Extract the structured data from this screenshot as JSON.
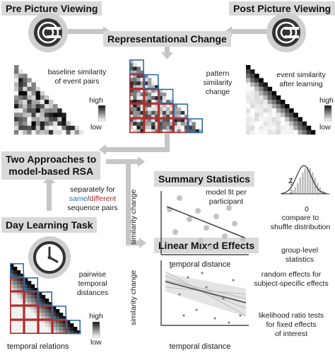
{
  "pre": {
    "title": "Pre Picture Viewing",
    "caption": "baseline similarity\nof event pairs",
    "high": "high",
    "low": "low"
  },
  "post": {
    "title": "Post Picture Viewing",
    "caption": "event similarity\nafter learning",
    "high": "high",
    "low": "low"
  },
  "center": {
    "title": "Representational Change",
    "caption": "pattern\nsimilarity\nchange"
  },
  "approaches": {
    "title_line1": "Two Approaches to",
    "title_line2": "model-based RSA",
    "note_prefix": "separately for",
    "same": "same",
    "slash": "/",
    "different": "different",
    "note_suffix": "sequence pairs"
  },
  "day": {
    "title": "Day Learning Task",
    "caption": "pairwise\ntemporal\ndistances",
    "xlabel": "temporal relations",
    "high": "high",
    "low": "low"
  },
  "summary": {
    "title": "Summary Statistics",
    "fit": "model fit per\nparticipant",
    "ylabel": "similarity change",
    "xlabel": "temporal distance",
    "z": "Z",
    "zero": "0",
    "compare": "compare to\nshuffle distribution",
    "group": "group-level\nstatistics"
  },
  "lme": {
    "title": "Linear Mixed Effects",
    "ylabel": "similarity change",
    "xlabel": "temporal distance",
    "random": "random effects for\nsubject-specific effects",
    "lrt": "likelihood ratio tests\nfor fixed effects\nof interest"
  },
  "colors": {
    "box_bg": "#d9d9d9",
    "blue": "#2f6fad",
    "red": "#b22a2a",
    "arrow": "#c8c8c8"
  }
}
